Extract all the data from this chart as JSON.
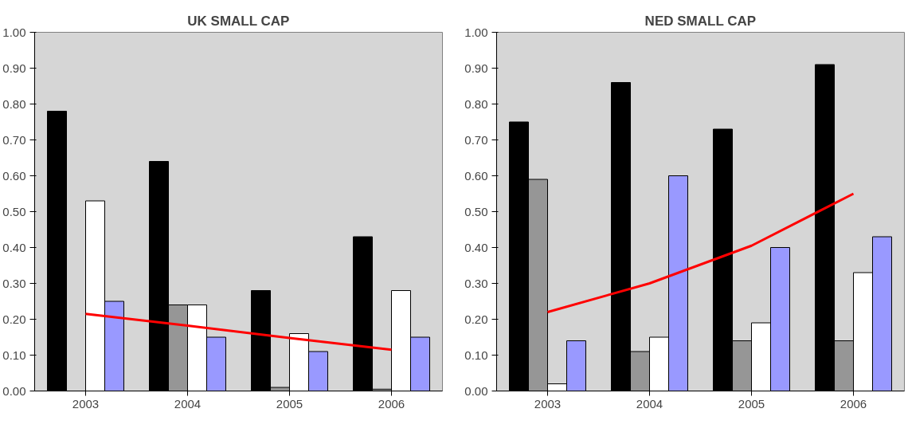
{
  "chart_data": [
    {
      "type": "bar",
      "title": "UK SMALL CAP",
      "categories": [
        "2003",
        "2004",
        "2005",
        "2006"
      ],
      "ylim": [
        0,
        1
      ],
      "yticks": [
        {
          "value": 0,
          "label": "0.00"
        },
        {
          "value": 0.1,
          "label": "0.10"
        },
        {
          "value": 0.2,
          "label": "0.20"
        },
        {
          "value": 0.3,
          "label": "0.30"
        },
        {
          "value": 0.4,
          "label": "0.40"
        },
        {
          "value": 0.5,
          "label": "0.50"
        },
        {
          "value": 0.6,
          "label": "0.60"
        },
        {
          "value": 0.7,
          "label": "0.70"
        },
        {
          "value": 0.8,
          "label": "0.80"
        },
        {
          "value": 0.9,
          "label": "0.90"
        },
        {
          "value": 1,
          "label": "1.00"
        }
      ],
      "grid": false,
      "series": [
        {
          "color": "#000000",
          "values": [
            0.78,
            0.64,
            0.28,
            0.43
          ]
        },
        {
          "color": "#969696",
          "values": [
            null,
            0.24,
            0.01,
            0.005
          ]
        },
        {
          "color": "#ffffff",
          "values": [
            0.53,
            0.24,
            0.16,
            0.28
          ]
        },
        {
          "color": "#9999ff",
          "values": [
            0.25,
            0.15,
            0.11,
            0.15
          ]
        },
        {
          "type": "line",
          "color": "#ff0000",
          "values": [
            0.215,
            0.182,
            0.148,
            0.115
          ]
        }
      ]
    },
    {
      "type": "bar",
      "title": "NED SMALL CAP",
      "categories": [
        "2003",
        "2004",
        "2005",
        "2006"
      ],
      "ylim": [
        0,
        1
      ],
      "yticks": [
        {
          "value": 0,
          "label": "0.00"
        },
        {
          "value": 0.1,
          "label": "0.10"
        },
        {
          "value": 0.2,
          "label": "0.20"
        },
        {
          "value": 0.3,
          "label": "0.30"
        },
        {
          "value": 0.4,
          "label": "0.40"
        },
        {
          "value": 0.5,
          "label": "0.50"
        },
        {
          "value": 0.6,
          "label": "0.60"
        },
        {
          "value": 0.7,
          "label": "0.70"
        },
        {
          "value": 0.8,
          "label": "0.80"
        },
        {
          "value": 0.9,
          "label": "0.90"
        },
        {
          "value": 1,
          "label": "1.00"
        }
      ],
      "grid": false,
      "series": [
        {
          "color": "#000000",
          "values": [
            0.75,
            0.86,
            0.73,
            0.91
          ]
        },
        {
          "color": "#969696",
          "values": [
            0.59,
            0.11,
            0.14,
            0.14
          ]
        },
        {
          "color": "#ffffff",
          "values": [
            0.02,
            0.15,
            0.19,
            0.33
          ]
        },
        {
          "color": "#9999ff",
          "values": [
            0.14,
            0.6,
            0.4,
            0.43
          ]
        },
        {
          "type": "line",
          "color": "#ff0000",
          "values": [
            0.22,
            0.3,
            0.405,
            0.55
          ]
        }
      ]
    }
  ]
}
